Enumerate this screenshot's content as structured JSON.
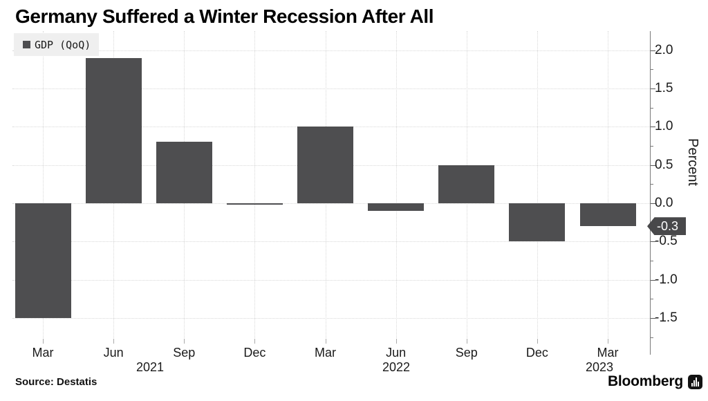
{
  "header": {
    "title": "Germany Suffered a Winter Recession After All"
  },
  "legend": {
    "label": "GDP (QoQ)",
    "marker_color": "#4e4e50"
  },
  "chart_data": {
    "type": "bar",
    "title": "Germany Suffered a Winter Recession After All",
    "series_name": "GDP (QoQ)",
    "categories": [
      "Mar 2021",
      "Jun 2021",
      "Sep 2021",
      "Dec 2021",
      "Mar 2022",
      "Jun 2022",
      "Sep 2022",
      "Dec 2022",
      "Mar 2023"
    ],
    "x_tick_labels": [
      "Mar",
      "Jun",
      "Sep",
      "Dec",
      "Mar",
      "Jun",
      "Sep",
      "Dec",
      "Mar"
    ],
    "year_labels": [
      "2021",
      "2022",
      "2023"
    ],
    "values": [
      -1.5,
      1.9,
      0.8,
      0.0,
      1.0,
      -0.1,
      0.5,
      -0.5,
      -0.3
    ],
    "ylabel": "Percent",
    "yticks": [
      2.0,
      1.5,
      1.0,
      0.5,
      0.0,
      -0.5,
      -1.0,
      -1.5
    ],
    "ylim": [
      -1.83,
      2.2
    ],
    "grid": true,
    "legend_position": "top-left",
    "bar_color": "#4e4e50",
    "last_value_badge": "-0.3"
  },
  "annotations": {
    "current_value_badge": "-0.3"
  },
  "footer": {
    "source": "Source: Destatis",
    "brand": "Bloomberg"
  },
  "colors": {
    "bar": "#4e4e50",
    "badge_bg": "#48484a",
    "gridline": "#d8d8d8",
    "axis_line": "#7a7a7a",
    "legend_bg": "#efefef"
  }
}
